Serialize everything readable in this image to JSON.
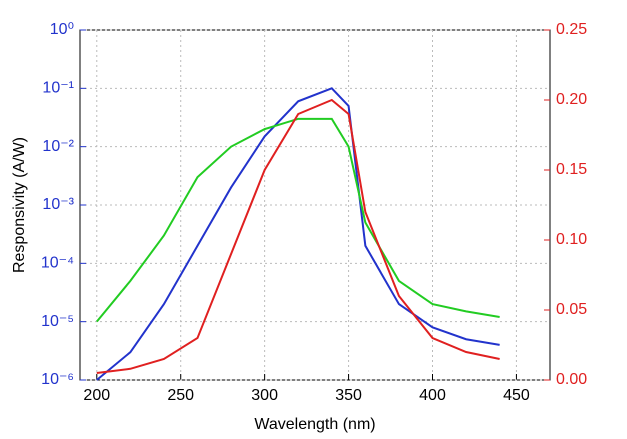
{
  "chart_data": {
    "type": "line",
    "x_label": "Wavelength (nm)",
    "y_label": "Responsivity (A/W)",
    "x": [
      200,
      220,
      240,
      260,
      280,
      300,
      320,
      340,
      350,
      360,
      380,
      400,
      420,
      440
    ],
    "xlim": [
      190,
      470
    ],
    "xticks": [
      200,
      250,
      300,
      350,
      400,
      450
    ],
    "yscale": "log",
    "ylim": [
      1e-06,
      1
    ],
    "yticks": [
      {
        "value": 1e-06,
        "label": "10⁻⁶"
      },
      {
        "value": 1e-05,
        "label": "10⁻⁵"
      },
      {
        "value": 0.0001,
        "label": "10⁻⁴"
      },
      {
        "value": 0.001,
        "label": "10⁻³"
      },
      {
        "value": 0.01,
        "label": "10⁻²"
      },
      {
        "value": 0.1,
        "label": "10⁻¹"
      },
      {
        "value": 1,
        "label": "10⁰"
      }
    ],
    "y2lim": [
      0,
      0.25
    ],
    "y2ticks": [
      {
        "value": 0,
        "label": "0.00"
      },
      0.05,
      {
        "value": 0.1,
        "label": "0.10"
      },
      0.15,
      {
        "value": 0.2,
        "label": "0.20"
      },
      0.25
    ],
    "grid": true,
    "series": [
      {
        "color": "#2233cc",
        "values": [
          1e-06,
          3e-06,
          2e-05,
          0.0002,
          0.002,
          0.015,
          0.06,
          0.1,
          0.05,
          0.0002,
          2e-05,
          8e-06,
          5e-06,
          4e-06
        ]
      },
      {
        "color": "#22cc22",
        "values": [
          1e-05,
          5e-05,
          0.0003,
          0.003,
          0.01,
          0.02,
          0.03,
          0.03,
          0.01,
          0.0005,
          5e-05,
          2e-05,
          1.5e-05,
          1.2e-05
        ]
      },
      {
        "color": "#e02020",
        "axis": "y2",
        "values": [
          0.005,
          0.008,
          0.015,
          0.03,
          0.09,
          0.15,
          0.19,
          0.2,
          0.19,
          0.12,
          0.06,
          0.03,
          0.02,
          0.015
        ]
      }
    ]
  }
}
